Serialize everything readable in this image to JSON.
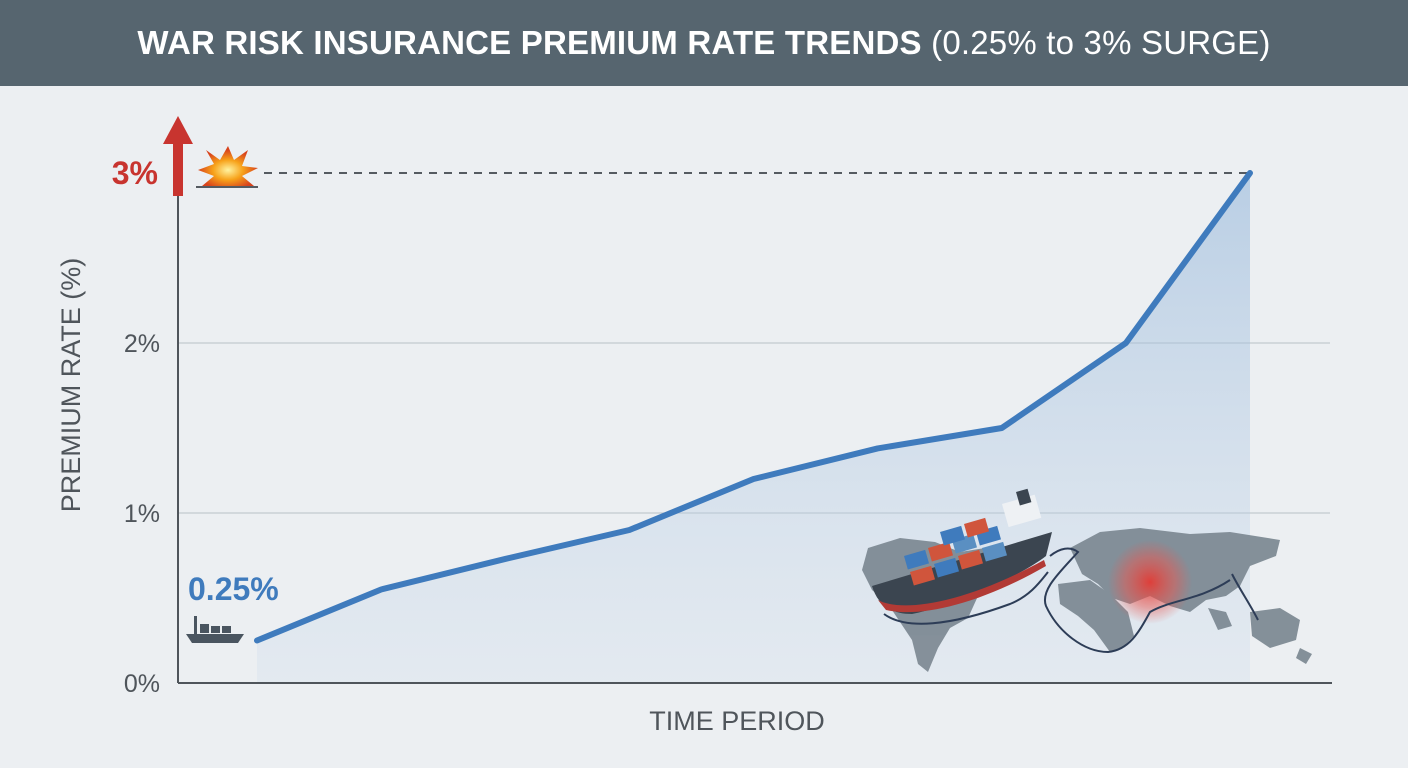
{
  "title": {
    "main": "WAR RISK INSURANCE PREMIUM RATE TRENDS",
    "sub": "(0.25% to 3% SURGE)"
  },
  "colors": {
    "line": "#3f7bbd",
    "peak": "#c8342f",
    "title_bg": "#56656f"
  },
  "chart_data": {
    "type": "line",
    "title": "WAR RISK INSURANCE PREMIUM RATE TRENDS (0.25% to 3% SURGE)",
    "xlabel": "TIME PERIOD",
    "ylabel": "PREMIUM RATE (%)",
    "ylim": [
      0,
      3
    ],
    "yticks": [
      "0%",
      "1%",
      "2%"
    ],
    "x": [
      0,
      1,
      2,
      3,
      4,
      5,
      6,
      7,
      8
    ],
    "series": [
      {
        "name": "Premium rate",
        "values": [
          0.25,
          0.55,
          0.73,
          0.9,
          1.2,
          1.38,
          1.5,
          2.0,
          3.0
        ]
      }
    ],
    "annotations": {
      "start_label": "0.25%",
      "peak_label": "3%"
    }
  },
  "icons": {
    "peak_arrow": "up-arrow-icon",
    "explosion": "explosion-icon",
    "start_ship": "ship-icon",
    "map": "world-map-ship-illustration"
  }
}
